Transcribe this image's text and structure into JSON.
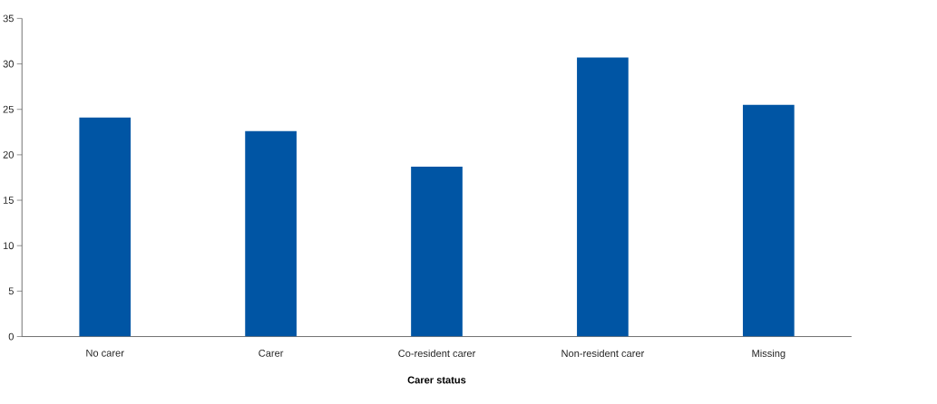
{
  "chart_data": {
    "type": "bar",
    "xlabel": "Carer status",
    "categories": [
      "No carer",
      "Carer",
      "Co-resident carer",
      "Non-resident carer",
      "Missing"
    ],
    "values": [
      24.1,
      22.6,
      18.7,
      30.7,
      25.5
    ],
    "color": "#0055a4",
    "ylim": [
      0,
      35
    ],
    "yticks": [
      0,
      5,
      10,
      15,
      20,
      25,
      30,
      35
    ],
    "grid": false
  }
}
